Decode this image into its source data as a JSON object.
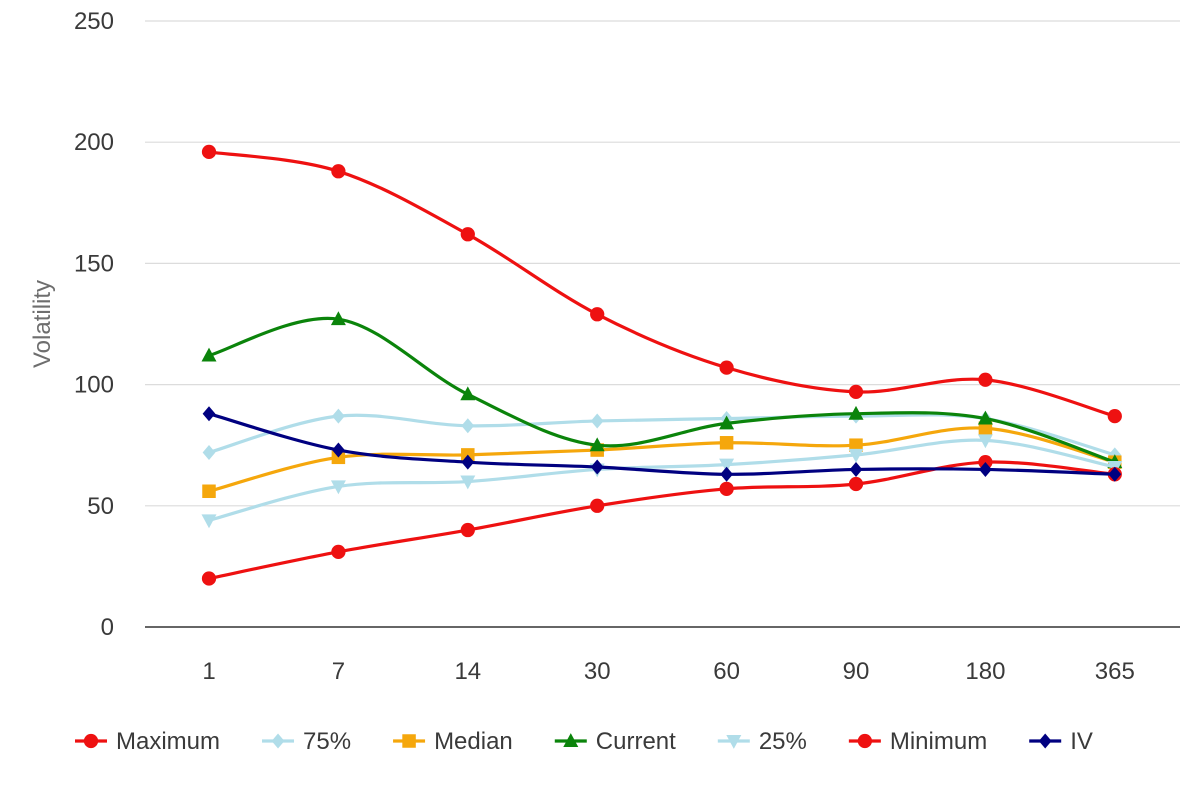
{
  "chart_data": {
    "type": "line",
    "title": "",
    "xlabel": "",
    "ylabel": "Volatility",
    "categories": [
      "1",
      "7",
      "14",
      "30",
      "60",
      "90",
      "180",
      "365"
    ],
    "ylim": [
      0,
      250
    ],
    "yticks": [
      0,
      50,
      100,
      150,
      200,
      250
    ],
    "grid": "horizontal",
    "legend_position": "bottom",
    "series": [
      {
        "name": "Maximum",
        "color": "#ee1111",
        "marker": "circle",
        "values": [
          196,
          188,
          162,
          129,
          107,
          97,
          102,
          87
        ]
      },
      {
        "name": "75%",
        "color": "#b0dde9",
        "marker": "diamond",
        "values": [
          72,
          87,
          83,
          85,
          86,
          87,
          86,
          71
        ]
      },
      {
        "name": "Median",
        "color": "#f5a70c",
        "marker": "square",
        "values": [
          56,
          70,
          71,
          73,
          76,
          75,
          82,
          68
        ]
      },
      {
        "name": "Current",
        "color": "#0b840b",
        "marker": "triangle-up",
        "values": [
          112,
          127,
          96,
          75,
          84,
          88,
          86,
          68
        ]
      },
      {
        "name": "25%",
        "color": "#b0dde9",
        "marker": "triangle-down",
        "values": [
          44,
          58,
          60,
          65,
          67,
          71,
          77,
          66
        ]
      },
      {
        "name": "Minimum",
        "color": "#ee1111",
        "marker": "circle",
        "values": [
          20,
          31,
          40,
          50,
          57,
          59,
          68,
          63
        ]
      },
      {
        "name": "IV",
        "color": "#000080",
        "marker": "diamond",
        "values": [
          88,
          73,
          68,
          66,
          63,
          65,
          65,
          63
        ]
      }
    ]
  },
  "colors": {
    "grid": "#dcdcdc",
    "baseline": "#333333",
    "tick_text": "#3a3a3a",
    "axis_title": "#6e6e6e"
  }
}
